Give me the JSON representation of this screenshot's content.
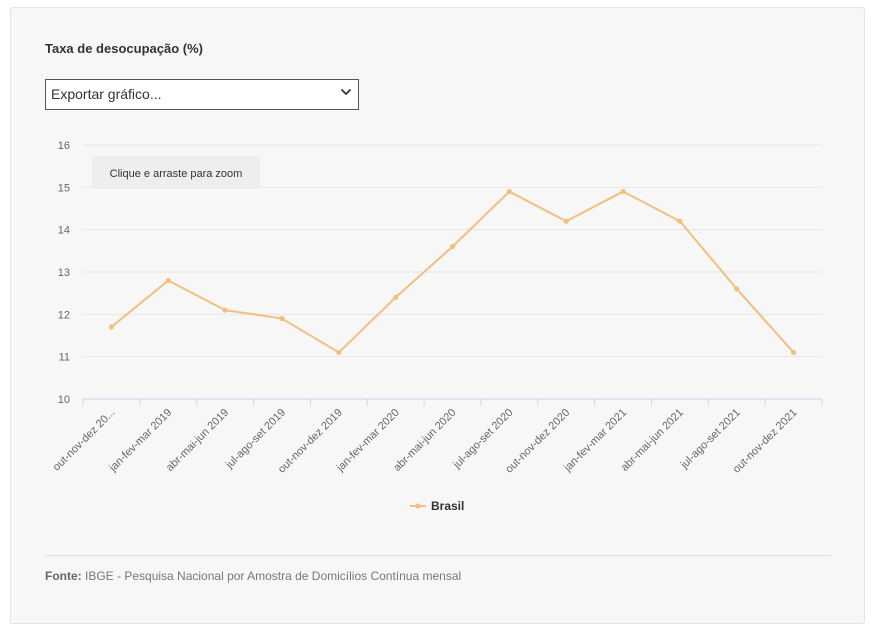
{
  "title": "Taxa de desocupação (%)",
  "export": {
    "label": "Exportar gráfico..."
  },
  "zoom_hint": "Clique e arraste para zoom",
  "source": {
    "label": "Fonte:",
    "text": "IBGE - Pesquisa Nacional por Amostra de Domicílios Contínua mensal"
  },
  "colors": {
    "series": "#f0c07e",
    "grid": "#e6e6e6",
    "axis": "#ccd6eb"
  },
  "chart_data": {
    "type": "line",
    "categories": [
      "out-nov-dez 20...",
      "jan-fev-mar 2019",
      "abr-mai-jun 2019",
      "jul-ago-set 2019",
      "out-nov-dez 2019",
      "jan-fev-mar 2020",
      "abr-mai-jun 2020",
      "jul-ago-set 2020",
      "out-nov-dez 2020",
      "jan-fev-mar 2021",
      "abr-mai-jun 2021",
      "jul-ago-set 2021",
      "out-nov-dez 2021"
    ],
    "series": [
      {
        "name": "Brasil",
        "values": [
          11.7,
          12.8,
          12.1,
          11.9,
          11.1,
          12.4,
          13.6,
          14.9,
          14.2,
          14.9,
          14.2,
          12.6,
          11.1
        ]
      }
    ],
    "ylim": [
      10,
      16
    ],
    "yticks": [
      "10",
      "11",
      "12",
      "13",
      "14",
      "15",
      "16"
    ],
    "grid": true,
    "legend": "bottom-center"
  }
}
